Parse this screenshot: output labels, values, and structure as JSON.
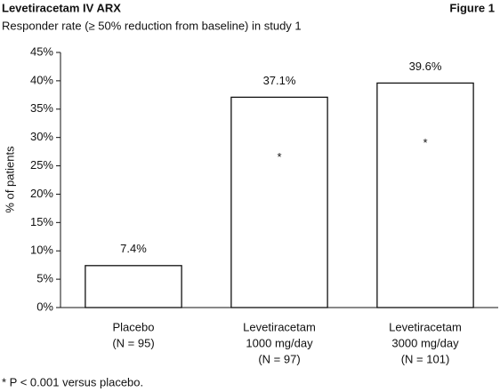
{
  "chart_data": {
    "type": "bar",
    "title": "Levetiracetam IV ARX",
    "figure_label": "Figure 1",
    "subtitle": "Responder rate (≥ 50% reduction from baseline) in study 1",
    "y_axis_label": "% of patients",
    "categories": [
      [
        "Placebo",
        "(N = 95)"
      ],
      [
        "Levetiracetam",
        "1000 mg/day",
        "(N = 97)"
      ],
      [
        "Levetiracetam",
        "3000 mg/day",
        "(N = 101)"
      ]
    ],
    "values": [
      7.4,
      37.1,
      39.6
    ],
    "value_labels": [
      "7.4%",
      "37.1%",
      "39.6%"
    ],
    "bar_annotations": [
      null,
      "*",
      "*"
    ],
    "color": "#ffffff",
    "ylim": [
      0,
      45
    ],
    "yticks": [
      {
        "value": 0,
        "label": "0%"
      },
      {
        "value": 5,
        "label": "5%"
      },
      {
        "value": 10,
        "label": "10%"
      },
      {
        "value": 15,
        "label": "15%"
      },
      {
        "value": 20,
        "label": "20%"
      },
      {
        "value": 25,
        "label": "25%"
      },
      {
        "value": 30,
        "label": "30%"
      },
      {
        "value": 35,
        "label": "35%"
      },
      {
        "value": 40,
        "label": "40%"
      },
      {
        "value": 45,
        "label": "45%"
      }
    ],
    "grid": false,
    "footnote": "* P < 0.001 versus placebo."
  }
}
